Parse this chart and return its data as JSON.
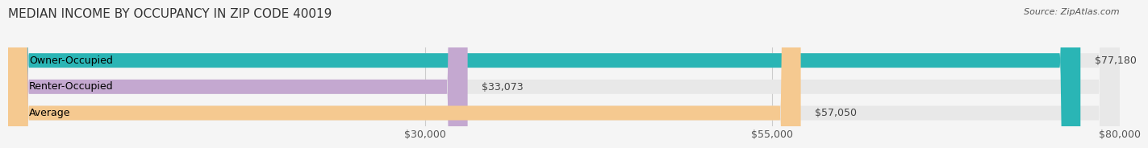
{
  "title": "MEDIAN INCOME BY OCCUPANCY IN ZIP CODE 40019",
  "source": "Source: ZipAtlas.com",
  "categories": [
    "Owner-Occupied",
    "Renter-Occupied",
    "Average"
  ],
  "values": [
    77180,
    33073,
    57050
  ],
  "bar_colors": [
    "#2ab5b5",
    "#c4a8d0",
    "#f5c990"
  ],
  "bar_labels": [
    "$77,180",
    "$33,073",
    "$57,050"
  ],
  "xlim": [
    0,
    80000
  ],
  "xticks": [
    30000,
    55000,
    80000
  ],
  "xticklabels": [
    "$30,000",
    "$55,000",
    "$80,000"
  ],
  "background_color": "#f5f5f5",
  "bar_bg_color": "#e8e8e8",
  "title_fontsize": 11,
  "source_fontsize": 8,
  "label_fontsize": 9,
  "tick_fontsize": 9,
  "bar_height": 0.55
}
